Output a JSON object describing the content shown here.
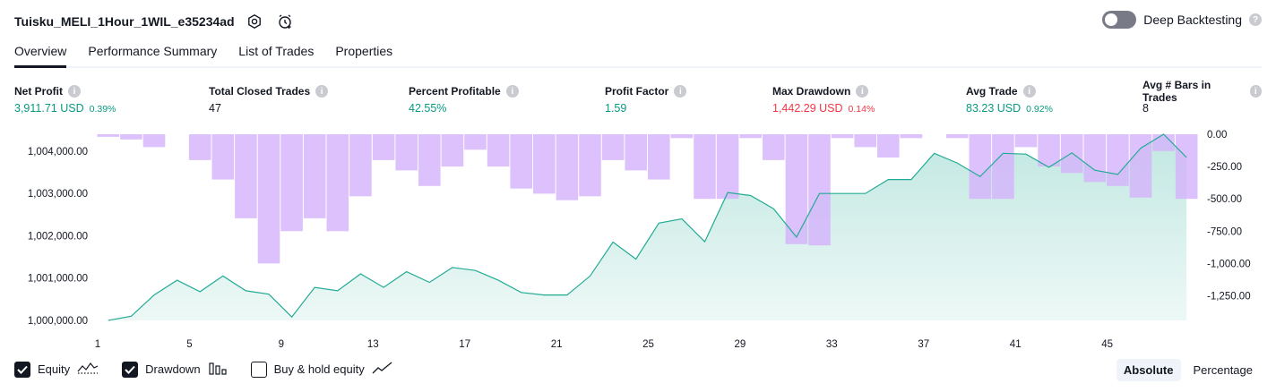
{
  "header": {
    "title": "Tuisku_MELI_1Hour_1WIL_e35234ad",
    "deep_backtesting_label": "Deep Backtesting"
  },
  "tabs": [
    {
      "label": "Overview",
      "active": true
    },
    {
      "label": "Performance Summary",
      "active": false
    },
    {
      "label": "List of Trades",
      "active": false
    },
    {
      "label": "Properties",
      "active": false
    }
  ],
  "metrics": {
    "net_profit": {
      "label": "Net Profit",
      "value": "3,911.71 USD",
      "pct": "0.39%"
    },
    "total_closed_trades": {
      "label": "Total Closed Trades",
      "value": "47"
    },
    "percent_profitable": {
      "label": "Percent Profitable",
      "value": "42.55%"
    },
    "profit_factor": {
      "label": "Profit Factor",
      "value": "1.59"
    },
    "max_drawdown": {
      "label": "Max Drawdown",
      "value": "1,442.29 USD",
      "pct": "0.14%"
    },
    "avg_trade": {
      "label": "Avg Trade",
      "value": "83.23 USD",
      "pct": "0.92%"
    },
    "avg_bars": {
      "label": "Avg # Bars in Trades",
      "value": "8"
    }
  },
  "colors": {
    "profit": "#089981",
    "loss": "#f23645",
    "equity_line": "#22ab94",
    "drawdown_bar": "#d4b3fb"
  },
  "chart_data": {
    "type": "area",
    "x": [
      1,
      2,
      3,
      4,
      5,
      6,
      7,
      8,
      9,
      10,
      11,
      12,
      13,
      14,
      15,
      16,
      17,
      18,
      19,
      20,
      21,
      22,
      23,
      24,
      25,
      26,
      27,
      28,
      29,
      30,
      31,
      32,
      33,
      34,
      35,
      36,
      37,
      38,
      39,
      40,
      41,
      42,
      43,
      44,
      45,
      46,
      47,
      48
    ],
    "x_ticks": [
      "1",
      "5",
      "9",
      "13",
      "17",
      "21",
      "25",
      "29",
      "33",
      "37",
      "41",
      "45"
    ],
    "series": [
      {
        "name": "Equity",
        "axis": "left",
        "values": [
          1000000,
          1000100,
          1000600,
          1000950,
          1000680,
          1001050,
          1000700,
          1000620,
          1000080,
          1000780,
          1000700,
          1001100,
          1000780,
          1001150,
          1000900,
          1001250,
          1001180,
          1000950,
          1000660,
          1000600,
          1000600,
          1001050,
          1001850,
          1001450,
          1002300,
          1002400,
          1001860,
          1003020,
          1002950,
          1002640,
          1001970,
          1003000,
          1003000,
          1003000,
          1003330,
          1003330,
          1003950,
          1003720,
          1003400,
          1003950,
          1003930,
          1003620,
          1003960,
          1003550,
          1003450,
          1004070,
          1004400,
          1003850
        ]
      },
      {
        "name": "Drawdown",
        "axis": "right",
        "values": [
          -20,
          -40,
          -100,
          0,
          -200,
          -350,
          -650,
          -1000,
          -750,
          -650,
          -750,
          -480,
          -200,
          -280,
          -400,
          -250,
          -120,
          -250,
          -420,
          -460,
          -510,
          -480,
          -200,
          -280,
          -350,
          -30,
          -500,
          -500,
          -30,
          -200,
          -850,
          -860,
          -30,
          -100,
          -180,
          -30,
          0,
          -30,
          -500,
          -500,
          -100,
          -250,
          -300,
          -370,
          -400,
          -490,
          -130,
          -500
        ]
      }
    ],
    "yleft_ticks": [
      "1,000,000.00",
      "1,001,000.00",
      "1,002,000.00",
      "1,003,000.00",
      "1,004,000.00"
    ],
    "yleft_range": [
      1000000,
      1004400
    ],
    "yright_ticks": [
      "0.00",
      "-250.00",
      "-500.00",
      "-750.00",
      "-1,000.00",
      "-1,250.00"
    ],
    "yright_range": [
      -1440,
      0
    ],
    "grid": false
  },
  "legend": {
    "equity": {
      "label": "Equity",
      "checked": true
    },
    "drawdown": {
      "label": "Drawdown",
      "checked": true
    },
    "buy_hold": {
      "label": "Buy & hold equity",
      "checked": false
    }
  },
  "modes": {
    "absolute": "Absolute",
    "percentage": "Percentage"
  }
}
